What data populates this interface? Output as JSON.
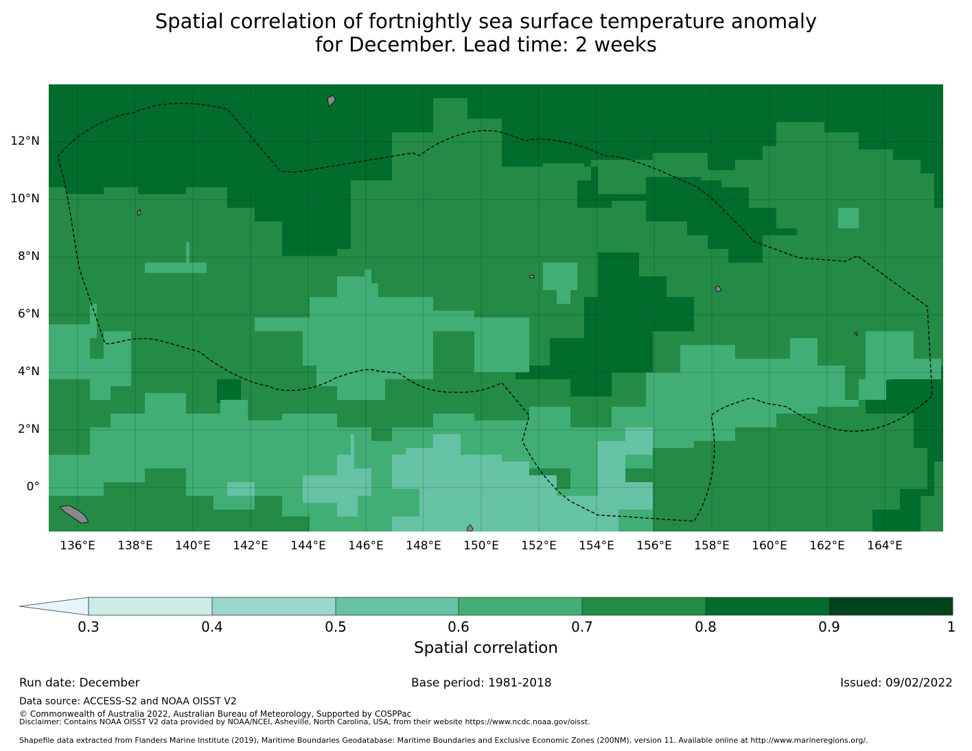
{
  "title": {
    "line1": "Spatial correlation of fortnightly sea surface temperature anomaly",
    "line2": "for December. Lead time: 2 weeks"
  },
  "map": {
    "lat_ticks": [
      "12°N",
      "10°N",
      "8°N",
      "6°N",
      "4°N",
      "2°N",
      "0°"
    ],
    "lon_ticks": [
      "136°E",
      "138°E",
      "140°E",
      "142°E",
      "144°E",
      "146°E",
      "148°E",
      "150°E",
      "152°E",
      "154°E",
      "156°E",
      "158°E",
      "160°E",
      "162°E",
      "164°E"
    ],
    "colors": {
      "land": "#888888",
      "class_0.5_0.6": "#66c2a4",
      "class_0.6_0.7": "#41ae76",
      "class_0.7_0.8": "#238b45",
      "class_0.8_0.9": "#006d2c",
      "class_0.9_1": "#00441b"
    }
  },
  "colorbar": {
    "ticks": [
      "0.3",
      "0.4",
      "0.5",
      "0.6",
      "0.7",
      "0.8",
      "0.9",
      "1"
    ],
    "colors": [
      "#e5f5f9",
      "#ccece6",
      "#99d8c9",
      "#66c2a4",
      "#41ae76",
      "#238b45",
      "#006d2c",
      "#00441b"
    ],
    "label": "Spatial correlation"
  },
  "footer": {
    "run_date": "Run date: December",
    "base_period": "Base period: 1981-2018",
    "issued": "Issued: 09/02/2022",
    "data_source": "Data source: ACCESS-S2 and NOAA OISST V2",
    "copyright": "© Commonwealth of Australia 2022, Australian Bureau of Meteorology, Supported by COSPPac",
    "disclaimer": "Disclaimer: Contains NOAA OISST V2 data provided by NOAA/NCEI, Asheville, North Carolina, USA, from their website https://www.ncdc.noaa.gov/oisst.",
    "shapefile": "Shapefile data extracted from Flanders Marine Institute (2019), Maritime Boundaries Geodatabase: Maritime Boundaries and Exclusive Economic Zones (200NM), version 11. Available online at http://www.marineregions.org/."
  }
}
